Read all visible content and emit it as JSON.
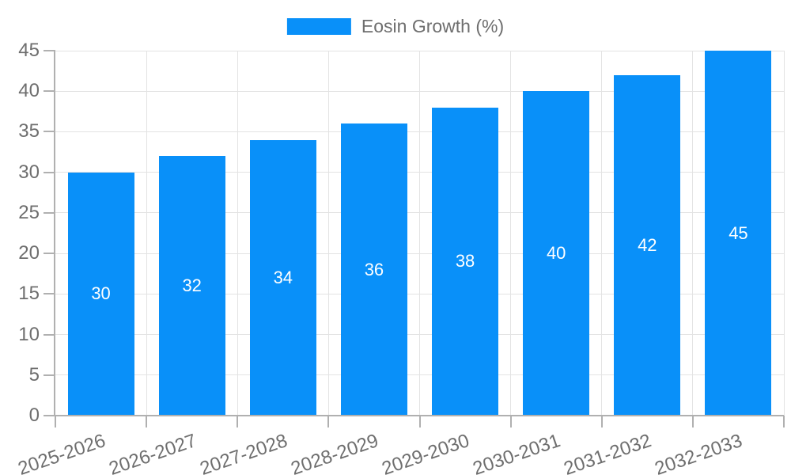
{
  "chart_data": {
    "type": "bar",
    "title": "",
    "xlabel": "",
    "ylabel": "",
    "categories": [
      "2025-2026",
      "2026-2027",
      "2027-2028",
      "2028-2029",
      "2029-2030",
      "2030-2031",
      "2031-2032",
      "2032-2033"
    ],
    "series": [
      {
        "name": "Eosin Growth (%)",
        "values": [
          30,
          32,
          34,
          36,
          38,
          40,
          42,
          45
        ]
      }
    ],
    "ylim": [
      0,
      45
    ],
    "yticks": [
      0,
      5,
      10,
      15,
      20,
      25,
      30,
      35,
      40,
      45
    ],
    "grid": true,
    "legend_position": "top-center",
    "value_labels": "inside-center"
  },
  "colors": {
    "bar": "#0990f9",
    "grid": "#e3e3e3",
    "axis_line": "#b0b0b0",
    "axis_label": "#6e6e6e",
    "legend_text": "#6e6e6e",
    "value_label": "#ffffff",
    "background": "#ffffff"
  }
}
